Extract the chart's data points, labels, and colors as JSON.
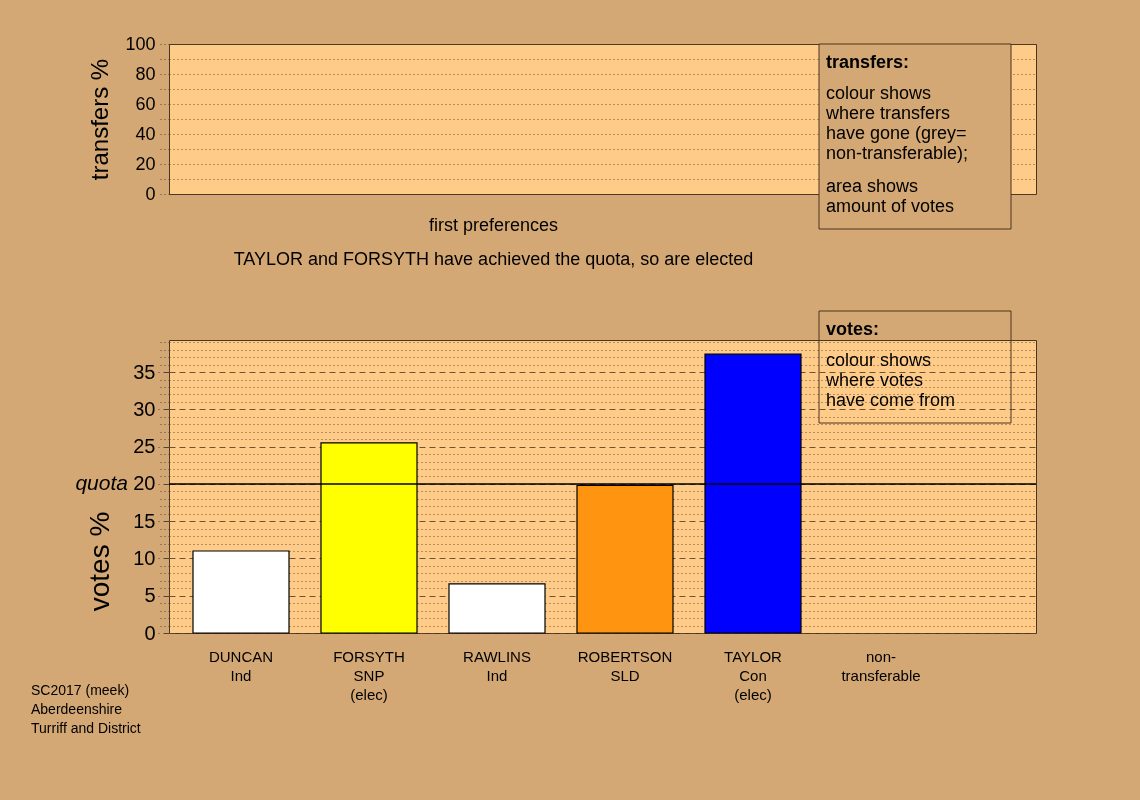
{
  "chart_data": [
    {
      "type": "bar",
      "ylabel": "transfers %",
      "categories": [
        null,
        null,
        null,
        null,
        null,
        null
      ],
      "values": [
        null,
        null,
        null,
        null,
        null,
        null
      ],
      "ylim": [
        0,
        100
      ],
      "yticks": [
        0,
        {
          "value": 10,
          "label": null
        },
        20,
        {
          "value": 30,
          "label": null
        },
        40,
        {
          "value": 50,
          "label": null
        },
        60,
        {
          "value": 70,
          "label": null
        },
        80,
        {
          "value": 90,
          "label": null
        },
        100
      ],
      "grid": "y",
      "tick_labels": "y",
      "annotations": [
        "transfers:",
        "colour shows\nwhere transfers\nhave gone (grey=\nnon-transferable);",
        "area shows\namount of votes"
      ]
    },
    {
      "type": "bar",
      "title": "first preferences",
      "subtitle": "TAYLOR and FORSYTH have achieved the quota, so are elected",
      "ylabel": "votes %",
      "categories": [
        "DUNCAN\nInd",
        "FORSYTH\nSNP\n(elec)",
        "RAWLINS\nInd",
        "ROBERTSON\nSLD",
        "TAYLOR\nCon\n(elec)",
        "non-\ntransferable"
      ],
      "values": [
        11.0,
        25.5,
        6.6,
        19.8,
        37.4,
        null
      ],
      "colors": [
        "#ffffff",
        "#ffff00",
        "#ffffff",
        "#ff9410",
        "#0000ff",
        null
      ],
      "ylim": [
        0,
        39.3
      ],
      "yticks": [
        0,
        {
          "value": 1,
          "label": null
        },
        {
          "value": 2,
          "label": null
        },
        {
          "value": 3,
          "label": null
        },
        {
          "value": 4,
          "label": null
        },
        5,
        {
          "value": 6,
          "label": null
        },
        {
          "value": 7,
          "label": null
        },
        {
          "value": 8,
          "label": null
        },
        {
          "value": 9,
          "label": null
        },
        10,
        {
          "value": 11,
          "label": null
        },
        {
          "value": 12,
          "label": null
        },
        {
          "value": 13,
          "label": null
        },
        {
          "value": 14,
          "label": null
        },
        15,
        {
          "value": 16,
          "label": null
        },
        {
          "value": 17,
          "label": null
        },
        {
          "value": 18,
          "label": null
        },
        {
          "value": 19,
          "label": null
        },
        20,
        {
          "value": 21,
          "label": null
        },
        {
          "value": 22,
          "label": null
        },
        {
          "value": 23,
          "label": null
        },
        {
          "value": 24,
          "label": null
        },
        25,
        {
          "value": 26,
          "label": null
        },
        {
          "value": 27,
          "label": null
        },
        {
          "value": 28,
          "label": null
        },
        {
          "value": 29,
          "label": null
        },
        30,
        {
          "value": 31,
          "label": null
        },
        {
          "value": 32,
          "label": null
        },
        {
          "value": 33,
          "label": null
        },
        {
          "value": 34,
          "label": null
        },
        35,
        {
          "value": 36,
          "label": null
        },
        {
          "value": 37,
          "label": null
        },
        {
          "value": 38,
          "label": null
        },
        {
          "value": 39,
          "label": null
        }
      ],
      "grid": "y",
      "ref_lines": [
        {
          "axis": "y",
          "value": 20,
          "label": "quota",
          "color": "#000000"
        }
      ],
      "annotations": [
        "votes:",
        "colour shows\nwhere votes\nhave come from",
        "SC2017 (meek)\nAberdeenshire\nTurriff and District"
      ]
    }
  ]
}
